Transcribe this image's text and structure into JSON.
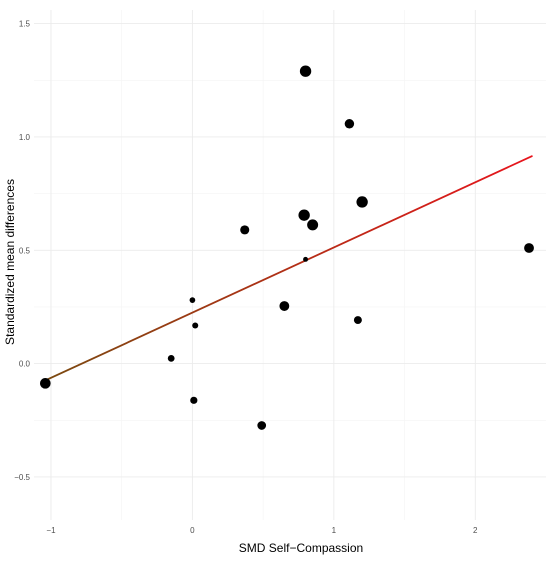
{
  "chart_data": {
    "type": "scatter",
    "title": "",
    "xlabel": "SMD Self−Compassion",
    "ylabel": "Standardized mean differences",
    "xlim": [
      -1.12,
      2.5
    ],
    "ylim": [
      -0.69,
      1.56
    ],
    "x_ticks": [
      -1,
      0,
      1,
      2
    ],
    "x_tick_labels": [
      "−1",
      "0",
      "1",
      "2"
    ],
    "y_ticks": [
      -0.5,
      0,
      0.5,
      1,
      1.5
    ],
    "y_tick_labels": [
      "−0.5",
      "0.0",
      "0.5",
      "1.0",
      "1.5"
    ],
    "x_minor_ticks": [
      -0.5,
      0.5,
      1.5
    ],
    "y_minor_ticks": [
      -0.25,
      0.25,
      0.75,
      1.25
    ],
    "grid": true,
    "legend": "none",
    "points": [
      {
        "x": -1.04,
        "y": -0.087,
        "weight": 1.0
      },
      {
        "x": -0.15,
        "y": 0.023,
        "weight": 0.5
      },
      {
        "x": 0.0,
        "y": 0.28,
        "weight": 0.35
      },
      {
        "x": 0.02,
        "y": 0.168,
        "weight": 0.4
      },
      {
        "x": 0.01,
        "y": -0.162,
        "weight": 0.55
      },
      {
        "x": 0.37,
        "y": 0.59,
        "weight": 0.8
      },
      {
        "x": 0.49,
        "y": -0.273,
        "weight": 0.75
      },
      {
        "x": 0.65,
        "y": 0.254,
        "weight": 0.9
      },
      {
        "x": 0.79,
        "y": 0.655,
        "weight": 1.1
      },
      {
        "x": 0.8,
        "y": 1.29,
        "weight": 1.1
      },
      {
        "x": 0.8,
        "y": 0.46,
        "weight": 0.25
      },
      {
        "x": 0.85,
        "y": 0.612,
        "weight": 1.05
      },
      {
        "x": 1.11,
        "y": 1.058,
        "weight": 0.85
      },
      {
        "x": 1.17,
        "y": 0.192,
        "weight": 0.65
      },
      {
        "x": 1.2,
        "y": 0.713,
        "weight": 1.1
      },
      {
        "x": 2.38,
        "y": 0.51,
        "weight": 0.9
      }
    ],
    "regression_line": {
      "x": [
        -1.06,
        2.4
      ],
      "y": [
        -0.08,
        0.915
      ],
      "color_start": "#7a4a10",
      "color_end": "#e8141c"
    },
    "point_color": "#000000"
  }
}
